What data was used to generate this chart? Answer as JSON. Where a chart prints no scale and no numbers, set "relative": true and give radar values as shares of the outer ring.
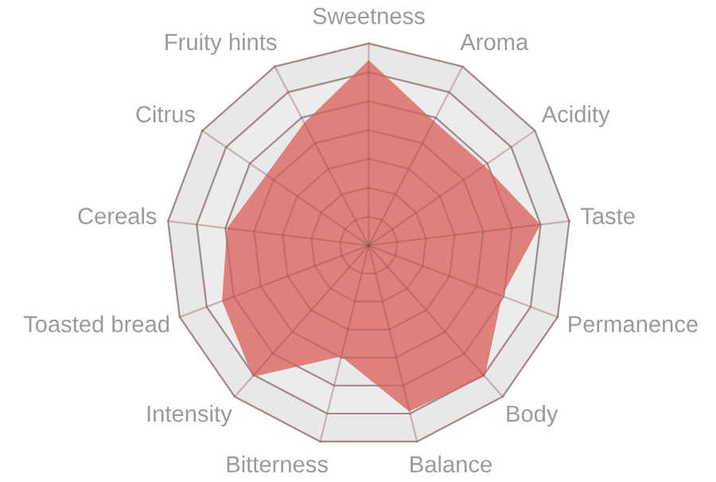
{
  "chart_data": {
    "type": "radar",
    "relative": true,
    "grid": true,
    "categories": [
      "Sweetness",
      "Aroma",
      "Acidity",
      "Taste",
      "Permanence",
      "Body",
      "Balance",
      "Bitterness",
      "Intensity",
      "Toasted bread",
      "Cereals",
      "Citrus",
      "Fruity hints"
    ],
    "series": [
      {
        "color": "#e0807c",
        "values": [
          0.91,
          0.69,
          0.69,
          0.85,
          0.7,
          0.86,
          0.84,
          0.56,
          0.86,
          0.77,
          0.7,
          0.61,
          0.68
        ]
      }
    ]
  }
}
